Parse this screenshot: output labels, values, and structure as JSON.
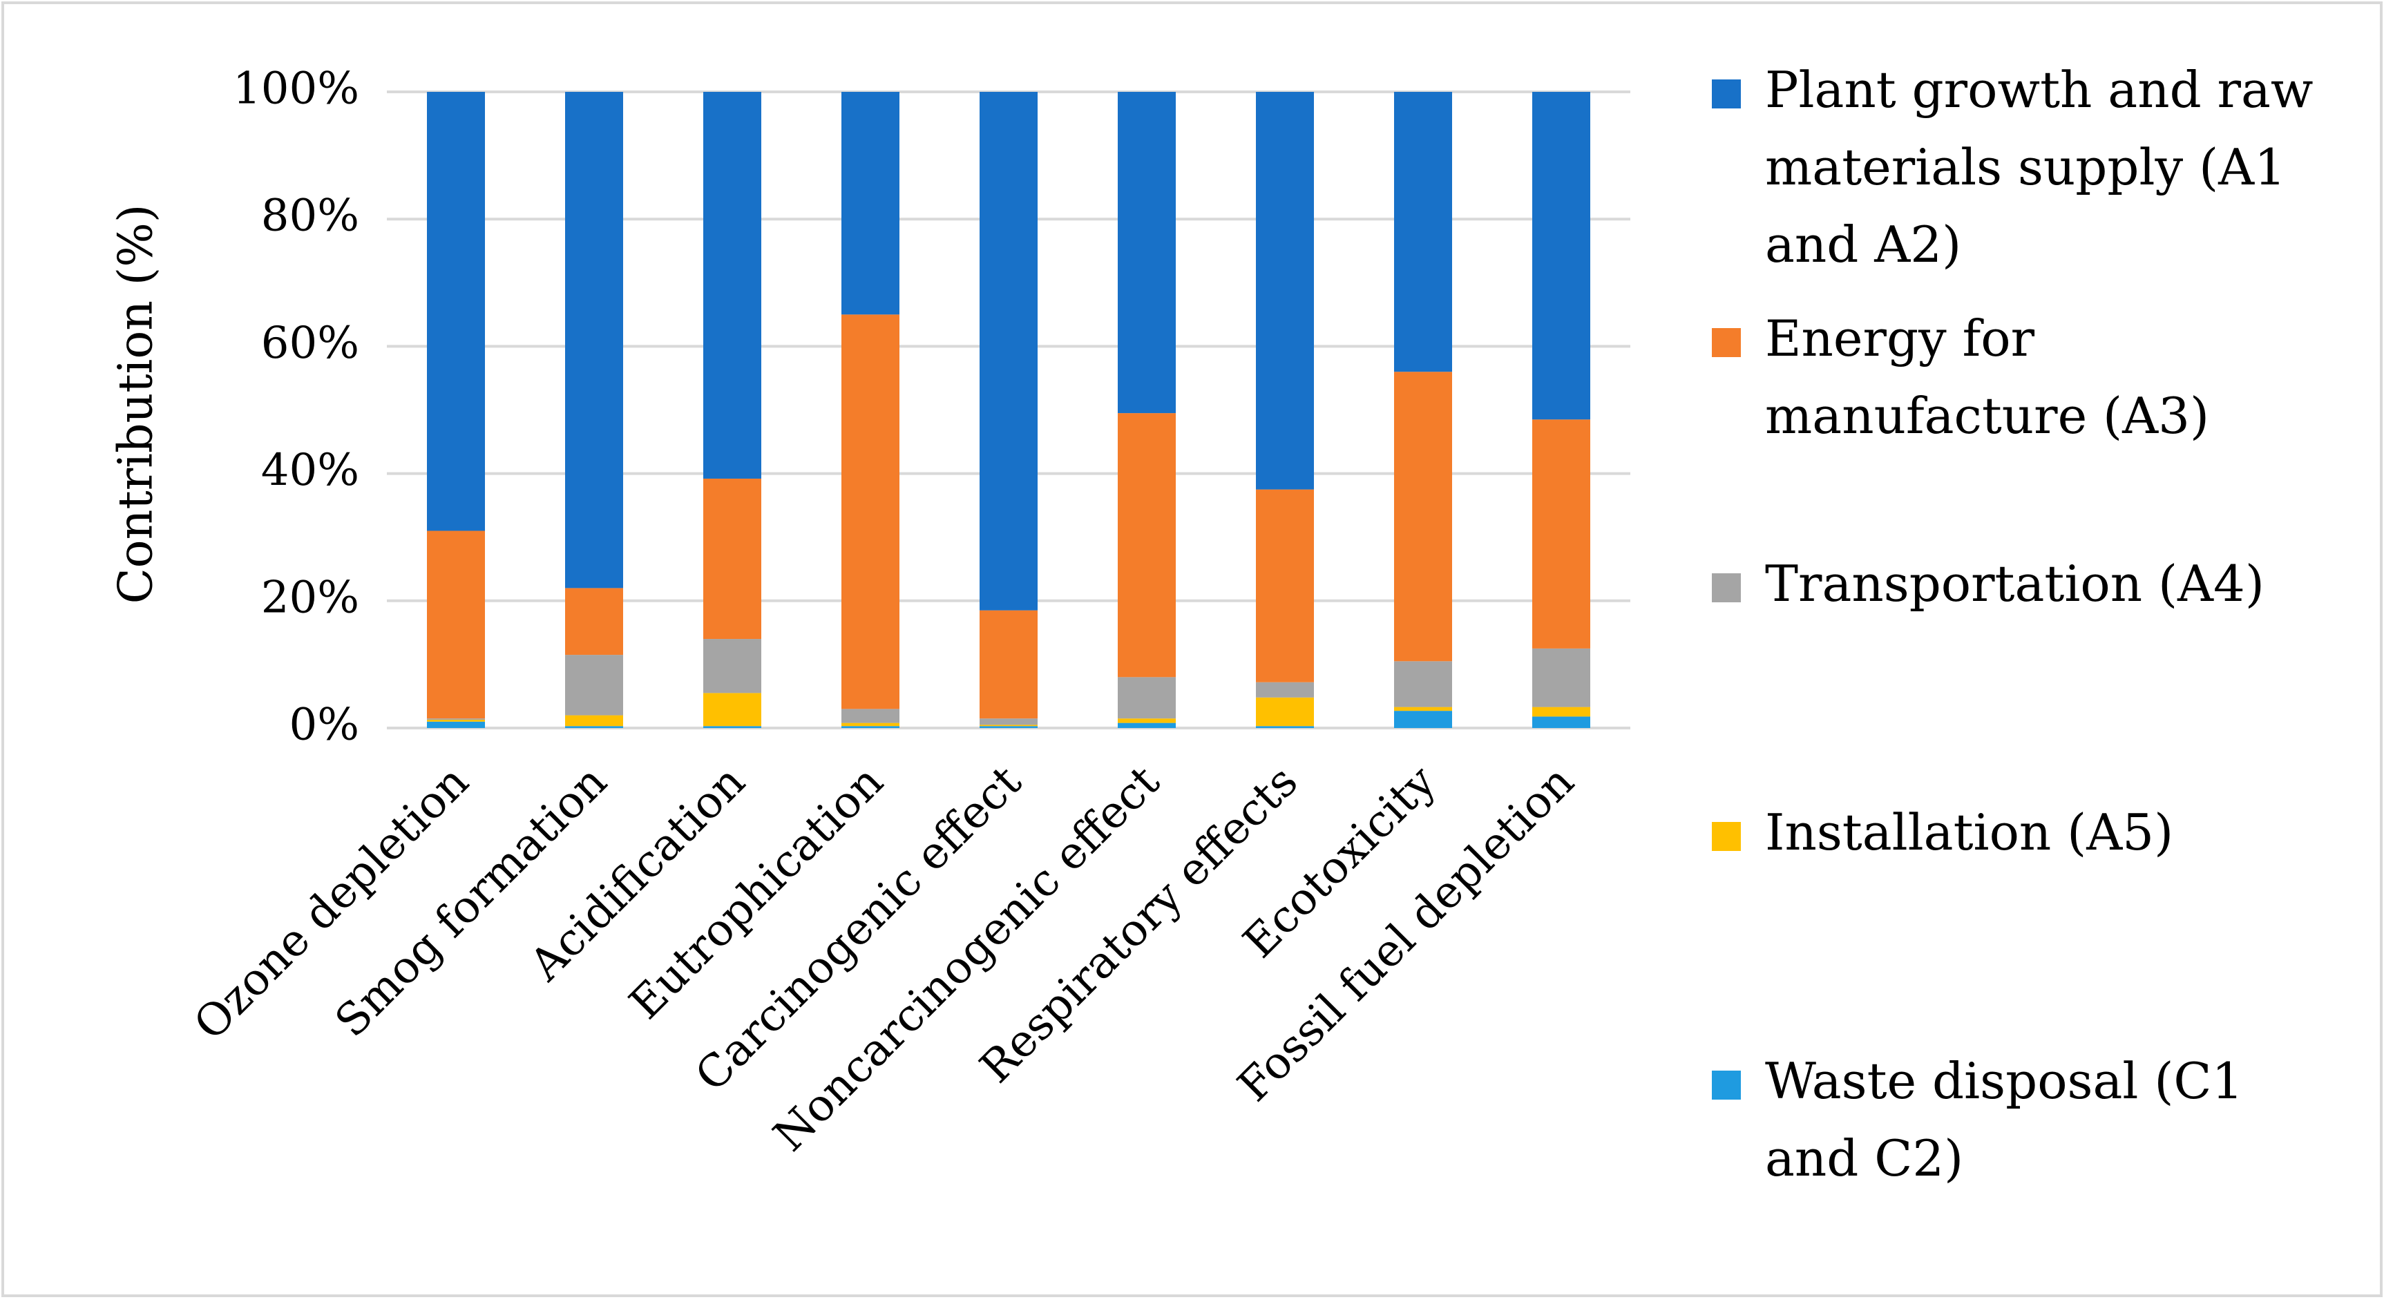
{
  "chart_data": {
    "type": "bar",
    "stacked": true,
    "percent": true,
    "title": "",
    "xlabel": "",
    "ylabel": "Contribution (%)",
    "ylim": [
      0,
      100
    ],
    "yticks": [
      "0%",
      "20%",
      "40%",
      "60%",
      "80%",
      "100%"
    ],
    "grid": true,
    "legend_position": "right",
    "categories": [
      "Ozone depletion",
      "Smog formation",
      "Acidification",
      "Eutrophication",
      "Carcinogenic effect",
      "Noncarcinogenic effect",
      "Respiratory effects",
      "Ecotoxicity",
      "Fossil fuel depletion"
    ],
    "series": [
      {
        "name": "Waste disposal (C1 and C2)",
        "legend_lines": [
          "Waste disposal (C1",
          "and C2)"
        ],
        "color": "#1f9be0",
        "values": [
          1.0,
          0.3,
          0.3,
          0.3,
          0.3,
          0.8,
          0.3,
          2.7,
          1.8
        ]
      },
      {
        "name": "Installation (A5)",
        "legend_lines": [
          "Installation (A5)"
        ],
        "color": "#ffc000",
        "values": [
          0.3,
          1.7,
          5.2,
          0.5,
          0.2,
          0.7,
          4.5,
          0.6,
          1.5
        ]
      },
      {
        "name": "Transportation (A4)",
        "legend_lines": [
          "Transportation (A4)"
        ],
        "color": "#a5a5a5",
        "values": [
          0.2,
          9.5,
          8.5,
          2.2,
          1.0,
          6.5,
          2.4,
          7.2,
          9.2
        ]
      },
      {
        "name": "Energy for manufacture (A3)",
        "legend_lines": [
          "Energy for",
          "manufacture (A3)"
        ],
        "color": "#f47d2a",
        "values": [
          29.5,
          10.5,
          25.2,
          62.0,
          17.0,
          41.5,
          30.3,
          45.5,
          36.0
        ]
      },
      {
        "name": "Plant growth and raw materials supply (A1 and A2)",
        "legend_lines": [
          "Plant growth and raw",
          "materials supply (A1",
          "and A2)"
        ],
        "color": "#1871c8",
        "values": [
          69.0,
          78.0,
          60.8,
          35.0,
          81.5,
          50.5,
          62.5,
          44.0,
          51.5
        ]
      }
    ]
  }
}
